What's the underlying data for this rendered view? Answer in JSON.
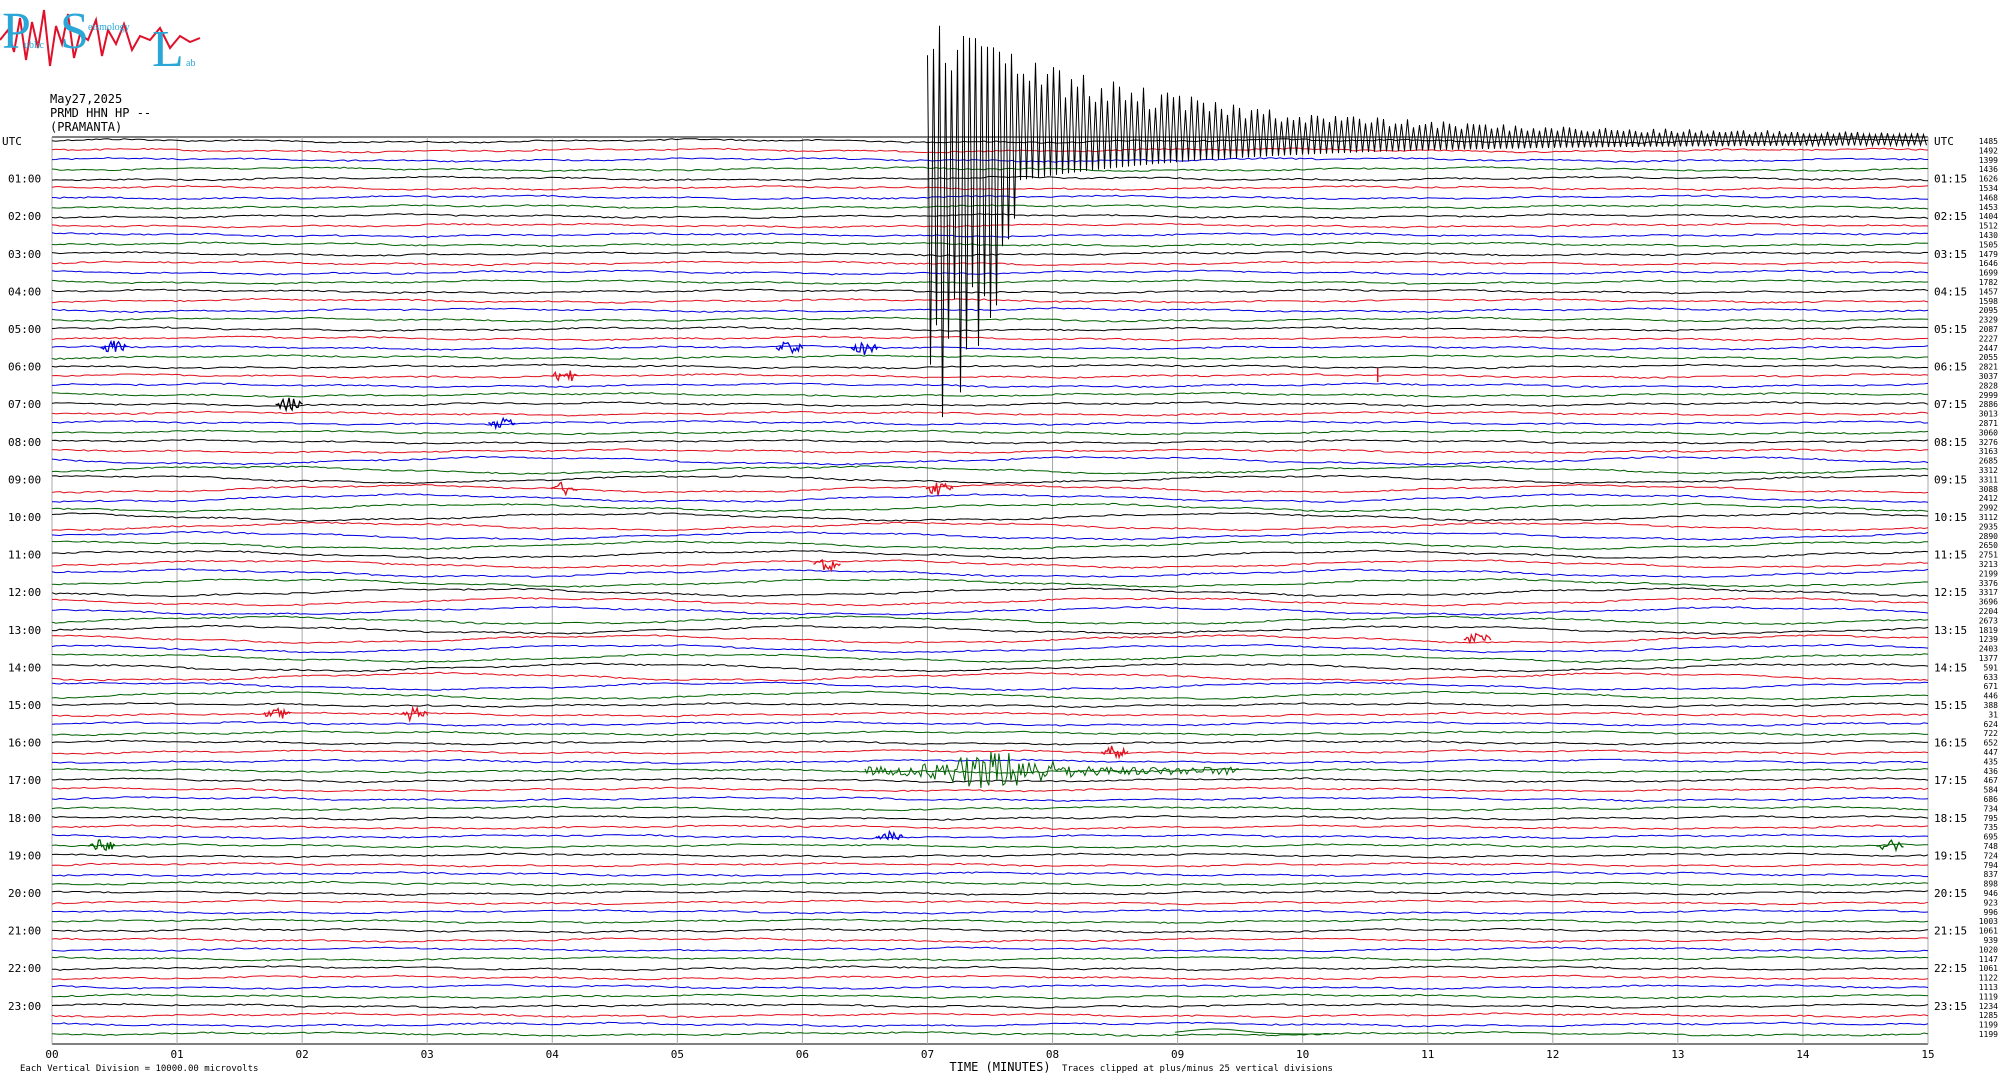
{
  "logo": {
    "letters": [
      "P",
      "S",
      "L"
    ],
    "words": [
      "ublic",
      "eismology",
      "ab"
    ],
    "colors": {
      "text": "#2aa7d6",
      "trace": "#e0102a"
    }
  },
  "header": {
    "date": "May27,2025",
    "channel": "PRMD HHN HP --",
    "station": "(PRAMANTA)"
  },
  "axis": {
    "left_title": "UTC",
    "right_title": "UTC",
    "x_title": "TIME (MINUTES)",
    "x_ticks": [
      "00",
      "01",
      "02",
      "03",
      "04",
      "05",
      "06",
      "07",
      "08",
      "09",
      "10",
      "11",
      "12",
      "13",
      "14",
      "15"
    ],
    "scale_note": "Each Vertical Division = 10000.00 microvolts",
    "clip_note": "Traces clipped at plus/minus 25 vertical divisions"
  },
  "chart_data": {
    "type": "line",
    "description_kind": "helicorder",
    "xlabel": "TIME (MINUTES)",
    "xlim": [
      0,
      15
    ],
    "rows_per_hour": 4,
    "row_minutes": 15,
    "row_count": 96,
    "trace_colors": [
      "#000000",
      "#e0101e",
      "#0000e0",
      "#006000"
    ],
    "left_hour_labels": [
      "UTC",
      "01:00",
      "02:00",
      "03:00",
      "04:00",
      "05:00",
      "06:00",
      "07:00",
      "08:00",
      "09:00",
      "10:00",
      "11:00",
      "12:00",
      "13:00",
      "14:00",
      "15:00",
      "16:00",
      "17:00",
      "18:00",
      "19:00",
      "20:00",
      "21:00",
      "22:00",
      "23:00"
    ],
    "right_hour_labels": [
      "UTC",
      "01:15",
      "02:15",
      "03:15",
      "04:15",
      "05:15",
      "06:15",
      "07:15",
      "08:15",
      "09:15",
      "10:15",
      "11:15",
      "12:15",
      "13:15",
      "14:15",
      "15:15",
      "16:15",
      "17:15",
      "18:15",
      "19:15",
      "20:15",
      "21:15",
      "22:15",
      "23:15"
    ],
    "row_values": [
      "1485",
      "1492",
      "1399",
      "1436",
      "1626",
      "1534",
      "1468",
      "1453",
      "1404",
      "1512",
      "1430",
      "1505",
      "1479",
      "1646",
      "1699",
      "1782",
      "1457",
      "1598",
      "2095",
      "2329",
      "2087",
      "2227",
      "2447",
      "2055",
      "2821",
      "3037",
      "2828",
      "2999",
      "2886",
      "3013",
      "2871",
      "3060",
      "3276",
      "3163",
      "2685",
      "3312",
      "3311",
      "3088",
      "2412",
      "2992",
      "3112",
      "2935",
      "2890",
      "2650",
      "2751",
      "3213",
      "2199",
      "3376",
      "3317",
      "3696",
      "2204",
      "2673",
      "1819",
      "1239",
      "2403",
      "1377",
      "591",
      "633",
      "671",
      "446",
      "388",
      "31",
      "624",
      "722",
      "652",
      "447",
      "435",
      "436",
      "467",
      "584",
      "686",
      "734",
      "795",
      "735",
      "695",
      "748",
      "724",
      "794",
      "837",
      "898",
      "946",
      "923",
      "996",
      "1003",
      "1061",
      "939",
      "1020",
      "1147",
      "1061",
      "1122",
      "1113",
      "1119",
      "1234",
      "1285",
      "1199",
      "1199"
    ],
    "events": [
      {
        "row": 0,
        "minute": 7.0,
        "kind": "teleseism-coda",
        "duration_min": 8.0,
        "peak_divisions": 25
      },
      {
        "row": 22,
        "minute": 0.5,
        "kind": "burst"
      },
      {
        "row": 22,
        "minute": 5.9,
        "kind": "burst"
      },
      {
        "row": 22,
        "minute": 6.5,
        "kind": "burst"
      },
      {
        "row": 25,
        "minute": 4.1,
        "kind": "burst"
      },
      {
        "row": 25,
        "minute": 10.6,
        "kind": "spike"
      },
      {
        "row": 28,
        "minute": 1.9,
        "kind": "burst"
      },
      {
        "row": 30,
        "minute": 3.6,
        "kind": "burst"
      },
      {
        "row": 37,
        "minute": 4.1,
        "kind": "burst"
      },
      {
        "row": 37,
        "minute": 7.1,
        "kind": "burst"
      },
      {
        "row": 45,
        "minute": 6.2,
        "kind": "burst"
      },
      {
        "row": 53,
        "minute": 11.4,
        "kind": "burst"
      },
      {
        "row": 61,
        "minute": 1.8,
        "kind": "burst"
      },
      {
        "row": 61,
        "minute": 2.9,
        "kind": "burst"
      },
      {
        "row": 65,
        "minute": 8.5,
        "kind": "burst"
      },
      {
        "row": 67,
        "minute": 6.5,
        "kind": "regional-event",
        "duration_min": 3.0
      },
      {
        "row": 74,
        "minute": 6.7,
        "kind": "burst"
      },
      {
        "row": 75,
        "minute": 0.4,
        "kind": "burst"
      },
      {
        "row": 75,
        "minute": 14.7,
        "kind": "burst"
      },
      {
        "row": 95,
        "minute": 9.3,
        "kind": "swell"
      }
    ]
  }
}
